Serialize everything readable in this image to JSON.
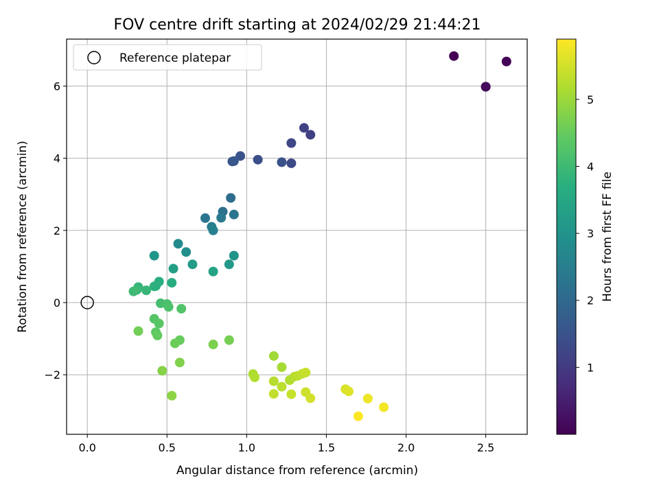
{
  "chart_data": {
    "type": "scatter",
    "title": "FOV centre drift starting at 2024/02/29 21:44:21",
    "xlabel": "Angular distance from reference (arcmin)",
    "ylabel": "Rotation from reference (arcmin)",
    "xlim": [
      -0.13,
      2.76
    ],
    "ylim": [
      -3.65,
      7.3
    ],
    "xticks": [
      0.0,
      0.5,
      1.0,
      1.5,
      2.0,
      2.5
    ],
    "xtick_labels": [
      "0.0",
      "0.5",
      "1.0",
      "1.5",
      "2.0",
      "2.5"
    ],
    "yticks": [
      -2,
      0,
      2,
      4,
      6
    ],
    "ytick_labels": [
      "−2",
      "0",
      "2",
      "4",
      "6"
    ],
    "grid": true,
    "legend": {
      "placement": "top-left",
      "entries": [
        {
          "label": "Reference platepar",
          "marker": "open-circle"
        }
      ]
    },
    "reference_point": {
      "x": 0.0,
      "y": 0.0
    },
    "colorbar": {
      "label": "Hours from first FF file",
      "colormap": "viridis",
      "range": [
        0.0,
        5.9
      ],
      "ticks": [
        1,
        2,
        3,
        4,
        5
      ],
      "tick_labels": [
        "1",
        "2",
        "3",
        "4",
        "5"
      ]
    },
    "points": [
      {
        "x": 2.3,
        "y": 6.83,
        "hours": 0.0
      },
      {
        "x": 2.63,
        "y": 6.68,
        "hours": 0.05
      },
      {
        "x": 2.5,
        "y": 5.98,
        "hours": 0.1
      },
      {
        "x": 2.5,
        "y": 5.98,
        "hours": 0.15
      },
      {
        "x": 1.36,
        "y": 4.84,
        "hours": 1.15
      },
      {
        "x": 1.4,
        "y": 4.65,
        "hours": 1.1
      },
      {
        "x": 1.28,
        "y": 4.42,
        "hours": 1.25
      },
      {
        "x": 1.28,
        "y": 3.86,
        "hours": 1.3
      },
      {
        "x": 1.22,
        "y": 3.89,
        "hours": 1.45
      },
      {
        "x": 0.96,
        "y": 4.06,
        "hours": 1.5
      },
      {
        "x": 0.91,
        "y": 3.91,
        "hours": 1.55
      },
      {
        "x": 0.92,
        "y": 3.92,
        "hours": 1.6
      },
      {
        "x": 1.07,
        "y": 3.96,
        "hours": 1.4
      },
      {
        "x": 0.9,
        "y": 2.9,
        "hours": 2.1
      },
      {
        "x": 0.85,
        "y": 2.52,
        "hours": 2.2
      },
      {
        "x": 0.74,
        "y": 2.34,
        "hours": 2.3
      },
      {
        "x": 0.84,
        "y": 2.35,
        "hours": 2.35
      },
      {
        "x": 0.92,
        "y": 2.44,
        "hours": 2.25
      },
      {
        "x": 0.78,
        "y": 2.1,
        "hours": 2.5
      },
      {
        "x": 0.79,
        "y": 2.0,
        "hours": 2.55
      },
      {
        "x": 0.57,
        "y": 1.63,
        "hours": 2.8
      },
      {
        "x": 0.62,
        "y": 1.4,
        "hours": 2.9
      },
      {
        "x": 0.92,
        "y": 1.3,
        "hours": 3.0
      },
      {
        "x": 0.42,
        "y": 1.3,
        "hours": 3.05
      },
      {
        "x": 0.89,
        "y": 1.06,
        "hours": 3.15
      },
      {
        "x": 0.66,
        "y": 1.06,
        "hours": 3.2
      },
      {
        "x": 0.54,
        "y": 0.94,
        "hours": 3.3
      },
      {
        "x": 0.79,
        "y": 0.86,
        "hours": 3.4
      },
      {
        "x": 0.45,
        "y": 0.58,
        "hours": 3.7
      },
      {
        "x": 0.53,
        "y": 0.55,
        "hours": 3.65
      },
      {
        "x": 0.42,
        "y": 0.45,
        "hours": 3.8
      },
      {
        "x": 0.43,
        "y": 0.46,
        "hours": 3.75
      },
      {
        "x": 0.32,
        "y": 0.43,
        "hours": 3.85
      },
      {
        "x": 0.37,
        "y": 0.34,
        "hours": 3.9
      },
      {
        "x": 0.31,
        "y": 0.35,
        "hours": 3.95
      },
      {
        "x": 0.29,
        "y": 0.31,
        "hours": 4.0
      },
      {
        "x": 0.46,
        "y": -0.02,
        "hours": 4.1
      },
      {
        "x": 0.5,
        "y": -0.04,
        "hours": 4.15
      },
      {
        "x": 0.51,
        "y": -0.12,
        "hours": 4.2
      },
      {
        "x": 0.59,
        "y": -0.17,
        "hours": 4.25
      },
      {
        "x": 0.42,
        "y": -0.45,
        "hours": 4.3
      },
      {
        "x": 0.45,
        "y": -0.58,
        "hours": 4.35
      },
      {
        "x": 0.43,
        "y": -0.82,
        "hours": 4.4
      },
      {
        "x": 0.44,
        "y": -0.91,
        "hours": 4.45
      },
      {
        "x": 0.32,
        "y": -0.79,
        "hours": 4.6
      },
      {
        "x": 0.58,
        "y": -1.04,
        "hours": 4.5
      },
      {
        "x": 0.55,
        "y": -1.13,
        "hours": 4.55
      },
      {
        "x": 0.89,
        "y": -1.04,
        "hours": 4.65
      },
      {
        "x": 0.79,
        "y": -1.16,
        "hours": 4.7
      },
      {
        "x": 0.58,
        "y": -1.66,
        "hours": 4.75
      },
      {
        "x": 0.47,
        "y": -1.89,
        "hours": 4.8
      },
      {
        "x": 0.53,
        "y": -2.58,
        "hours": 4.85
      },
      {
        "x": 1.17,
        "y": -1.48,
        "hours": 5.05
      },
      {
        "x": 1.22,
        "y": -1.79,
        "hours": 5.1
      },
      {
        "x": 1.04,
        "y": -1.98,
        "hours": 5.15
      },
      {
        "x": 1.05,
        "y": -2.07,
        "hours": 5.2
      },
      {
        "x": 1.17,
        "y": -2.18,
        "hours": 5.25
      },
      {
        "x": 1.22,
        "y": -2.33,
        "hours": 5.3
      },
      {
        "x": 1.17,
        "y": -2.53,
        "hours": 5.35
      },
      {
        "x": 1.27,
        "y": -2.15,
        "hours": 5.2
      },
      {
        "x": 1.3,
        "y": -2.05,
        "hours": 5.25
      },
      {
        "x": 1.32,
        "y": -2.03,
        "hours": 5.3
      },
      {
        "x": 1.35,
        "y": -1.97,
        "hours": 5.35
      },
      {
        "x": 1.37,
        "y": -1.94,
        "hours": 5.4
      },
      {
        "x": 1.28,
        "y": -2.54,
        "hours": 5.4
      },
      {
        "x": 1.37,
        "y": -2.48,
        "hours": 5.45
      },
      {
        "x": 1.4,
        "y": -2.65,
        "hours": 5.5
      },
      {
        "x": 1.62,
        "y": -2.4,
        "hours": 5.55
      },
      {
        "x": 1.64,
        "y": -2.46,
        "hours": 5.6
      },
      {
        "x": 1.76,
        "y": -2.66,
        "hours": 5.75
      },
      {
        "x": 1.86,
        "y": -2.9,
        "hours": 5.8
      },
      {
        "x": 1.7,
        "y": -3.15,
        "hours": 5.9
      }
    ]
  }
}
